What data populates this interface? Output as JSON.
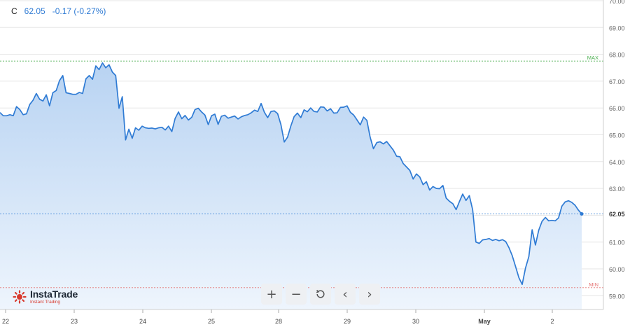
{
  "header": {
    "symbol": "C",
    "price": "62.05",
    "change": "-0.17 (-0.27%)"
  },
  "logo": {
    "name": "InstaTrade",
    "tagline": "Instant Trading"
  },
  "toolbar": {
    "zoom_in_label": "+",
    "zoom_out_label": "−",
    "reset_icon": "reset-icon",
    "back_label": "‹",
    "forward_label": "›"
  },
  "colors": {
    "line": "#2f7bd4",
    "area_top": "#b8d3f2",
    "area_bottom": "#eef5fd",
    "max": "#4caf50",
    "min": "#e57373",
    "grid": "#e6e6e6"
  },
  "chart_data": {
    "type": "area",
    "y_ticks": [
      "70.00",
      "69.00",
      "68.00",
      "67.00",
      "66.00",
      "65.00",
      "64.00",
      "63.00",
      "62.00",
      "61.00",
      "60.00",
      "59.00"
    ],
    "x_ticks": [
      "22",
      "23",
      "24",
      "25",
      "28",
      "29",
      "30",
      "May",
      "2"
    ],
    "ylim": [
      58.5,
      70.0
    ],
    "max": {
      "label": "MAX",
      "value": 67.75
    },
    "min": {
      "label": "MIN",
      "value": 59.3
    },
    "last": {
      "label": "62.05",
      "value": 62.05
    },
    "series": [
      {
        "values": [
          65.83,
          65.71,
          65.71,
          65.75,
          65.71,
          66.05,
          65.94,
          65.75,
          65.78,
          66.13,
          66.29,
          66.54,
          66.32,
          66.26,
          66.49,
          66.08,
          66.57,
          66.65,
          67.02,
          67.21,
          66.57,
          66.54,
          66.51,
          66.51,
          66.58,
          66.54,
          67.09,
          67.21,
          67.07,
          67.57,
          67.43,
          67.68,
          67.5,
          67.61,
          67.34,
          67.21,
          65.99,
          66.42,
          64.81,
          65.21,
          64.87,
          65.26,
          65.17,
          65.32,
          65.26,
          65.24,
          65.25,
          65.22,
          65.26,
          65.28,
          65.18,
          65.32,
          65.12,
          65.61,
          65.85,
          65.6,
          65.72,
          65.55,
          65.65,
          65.94,
          65.99,
          65.85,
          65.74,
          65.38,
          65.71,
          65.77,
          65.39,
          65.69,
          65.73,
          65.62,
          65.66,
          65.7,
          65.59,
          65.67,
          65.72,
          65.75,
          65.82,
          65.92,
          65.87,
          66.17,
          65.84,
          65.64,
          65.87,
          65.89,
          65.79,
          65.38,
          64.73,
          64.91,
          65.33,
          65.68,
          65.81,
          65.64,
          65.93,
          65.86,
          66.0,
          65.87,
          65.85,
          66.04,
          66.03,
          65.89,
          65.97,
          65.81,
          65.82,
          66.02,
          66.03,
          66.08,
          65.84,
          65.74,
          65.56,
          65.37,
          65.66,
          65.54,
          64.91,
          64.48,
          64.71,
          64.74,
          64.66,
          64.75,
          64.59,
          64.43,
          64.2,
          64.18,
          63.93,
          63.8,
          63.67,
          63.35,
          63.54,
          63.43,
          63.14,
          63.25,
          62.94,
          63.07,
          63.0,
          62.99,
          63.11,
          62.64,
          62.52,
          62.43,
          62.21,
          62.51,
          62.79,
          62.55,
          62.73,
          62.21,
          61.0,
          60.95,
          61.08,
          61.1,
          61.13,
          61.06,
          61.1,
          61.05,
          61.09,
          61.02,
          60.79,
          60.49,
          60.08,
          59.67,
          59.42,
          60.03,
          60.46,
          61.46,
          60.89,
          61.44,
          61.77,
          61.92,
          61.79,
          61.81,
          61.79,
          61.9,
          62.34,
          62.5,
          62.54,
          62.48,
          62.37,
          62.19,
          62.05
        ]
      }
    ]
  }
}
